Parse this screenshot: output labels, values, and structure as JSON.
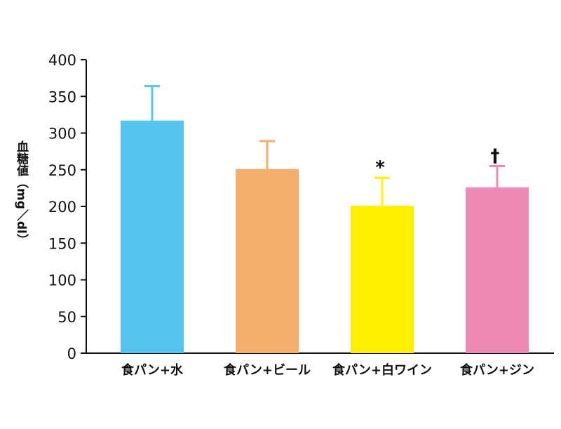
{
  "chart_data": {
    "type": "bar",
    "y_label": "血糖値（mg／dl）",
    "categories": [
      "食パン+水",
      "食パン+ビール",
      "食パン+白ワイン",
      "食パン+ジン"
    ],
    "values": [
      317,
      251,
      201,
      226
    ],
    "errors": [
      47,
      38,
      38,
      29
    ],
    "annotations": [
      null,
      null,
      "*",
      "†"
    ],
    "colors": [
      "#55c3f0",
      "#f4ae6c",
      "#fff000",
      "#ee88b4"
    ],
    "ylim": [
      0,
      400
    ],
    "yticks": [
      0,
      50,
      100,
      150,
      200,
      250,
      300,
      350,
      400
    ]
  }
}
